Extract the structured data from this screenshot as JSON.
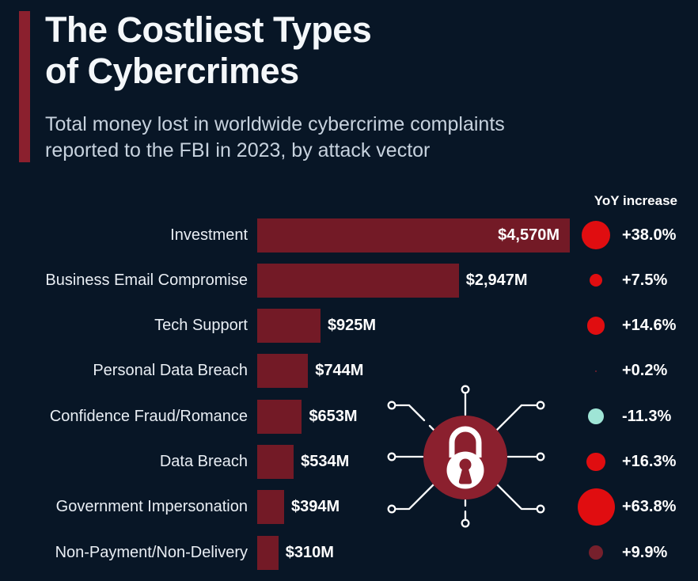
{
  "header": {
    "title_line1": "The Costliest Types",
    "title_line2": "of Cybercrimes",
    "subtitle_line1": "Total money lost in worldwide cybercrime complaints",
    "subtitle_line2": "reported to the FBI in 2023, by attack vector"
  },
  "chart_data": {
    "type": "bar",
    "orientation": "horizontal",
    "title": "The Costliest Types of Cybercrimes",
    "subtitle": "Total money lost in worldwide cybercrime complaints reported to the FBI in 2023, by attack vector",
    "unit": "million USD",
    "xlim": [
      0,
      4570
    ],
    "grid": false,
    "categories": [
      "Investment",
      "Business Email Compromise",
      "Tech Support",
      "Personal Data Breach",
      "Confidence Fraud/Romance",
      "Data Breach",
      "Government Impersonation",
      "Non-Payment/Non-Delivery"
    ],
    "values": [
      4570,
      2947,
      925,
      744,
      653,
      534,
      394,
      310
    ],
    "value_labels": [
      "$4,570M",
      "$2,947M",
      "$925M",
      "$744M",
      "$653M",
      "$534M",
      "$394M",
      "$310M"
    ],
    "yoy_header": "YoY increase",
    "yoy_values": [
      38.0,
      7.5,
      14.6,
      0.2,
      -11.3,
      16.3,
      63.8,
      9.9
    ],
    "yoy_labels": [
      "+38.0%",
      "+7.5%",
      "+14.6%",
      "+0.2%",
      "-11.3%",
      "+16.3%",
      "+63.8%",
      "+9.9%"
    ],
    "yoy_circle_colors": [
      "#e00d10",
      "#e00d10",
      "#e00d10",
      "#7a2230",
      "#9fe5d6",
      "#e00d10",
      "#e00d10",
      "#76202c"
    ],
    "legend_note": "circle size proportional to YoY change magnitude; red = increase, teal = decrease"
  },
  "colors": {
    "background": "#081626",
    "bar_fill": "#731a26",
    "accent_bar": "#8b202e",
    "lock_circle": "#8b202e",
    "positive_circle": "#e00d10",
    "negative_circle": "#9fe5d6",
    "title_text": "#f4f7fa",
    "subtitle_text": "#c7d2de",
    "category_text": "#e9eef4",
    "value_text": "#ffffff"
  },
  "icons": {
    "lock": "lock-circuit-icon"
  }
}
